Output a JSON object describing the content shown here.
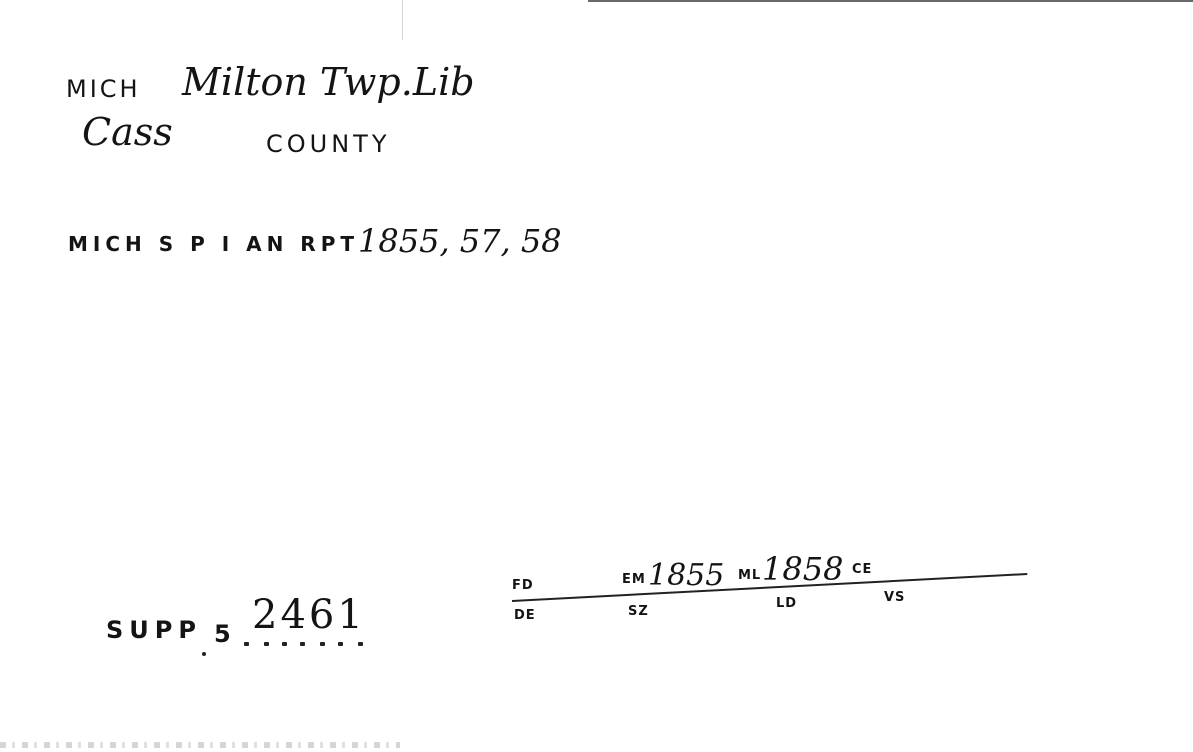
{
  "card": {
    "line1": {
      "state": "MICH",
      "name": "Milton Twp.Lib"
    },
    "line2": {
      "county_name": "Cass",
      "county_label": "COUNTY"
    },
    "source": {
      "label": "MICH S P I AN RPT",
      "years": "1855, 57, 58"
    },
    "supp": {
      "label": "SUPP",
      "number": "5",
      "code": "2461"
    },
    "fields": {
      "fd": "FD",
      "de": "DE",
      "em": "EM",
      "em_value": "1855",
      "ml": "ML",
      "ml_value": "1858",
      "ce": "CE",
      "sz": "SZ",
      "ld": "LD",
      "vs": "VS"
    }
  }
}
